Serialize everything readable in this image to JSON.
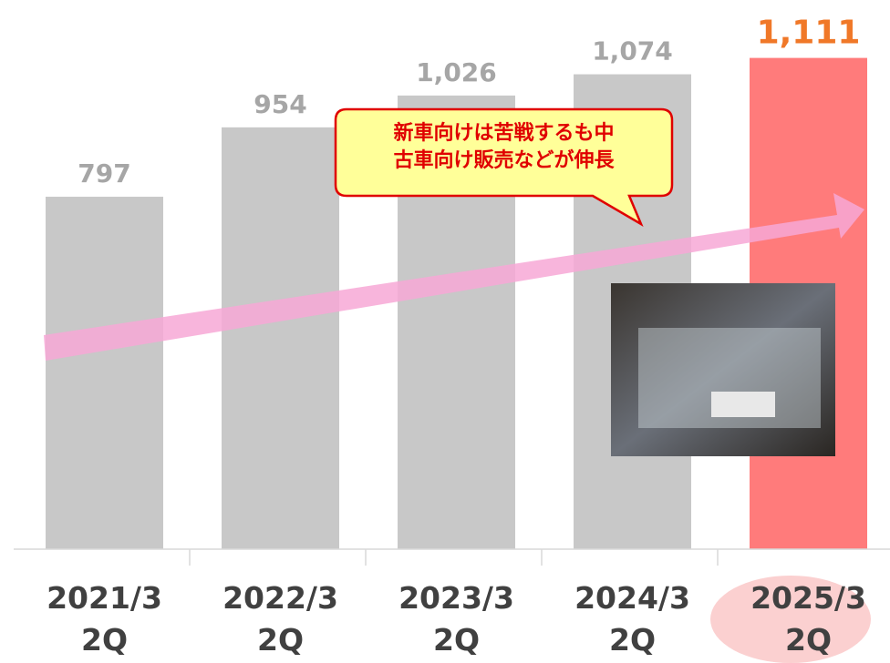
{
  "chart_data": {
    "type": "bar",
    "categories": [
      "2021/3\n2Q",
      "2022/3\n2Q",
      "2023/3\n2Q",
      "2024/3\n2Q",
      "2025/3\n2Q"
    ],
    "values": [
      797,
      954,
      1026,
      1074,
      1111
    ],
    "value_labels": [
      "797",
      "954",
      "1,026",
      "1,074",
      "1,111"
    ],
    "colors": [
      "#c8c8c8",
      "#c8c8c8",
      "#c8c8c8",
      "#c8c8c8",
      "#ff7b7b"
    ],
    "label_colors": [
      "#a6a6a6",
      "#a6a6a6",
      "#a6a6a6",
      "#a6a6a6",
      "#f07828"
    ],
    "ylim": [
      0,
      1242
    ],
    "annotation": "新車向けは苦戦するも中\n古車向け販売などが伸長"
  }
}
